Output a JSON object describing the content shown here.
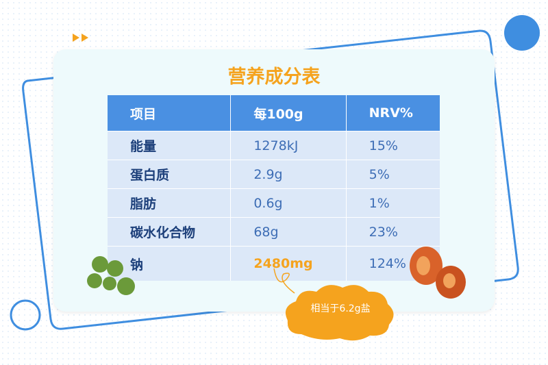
{
  "title": "营养成分表",
  "table": {
    "header": [
      "项目",
      "每100g",
      "NRV%"
    ],
    "rows": [
      [
        "能量",
        "1278kJ",
        "15%"
      ],
      [
        "蛋白质",
        "2.9g",
        "5%"
      ],
      [
        "脂肪",
        "0.6g",
        "1%"
      ],
      [
        "碳水化合物",
        "68g",
        "23%"
      ],
      [
        "钠",
        "2480mg",
        "124%"
      ]
    ]
  },
  "annotation": "相当于6.2g盐"
}
